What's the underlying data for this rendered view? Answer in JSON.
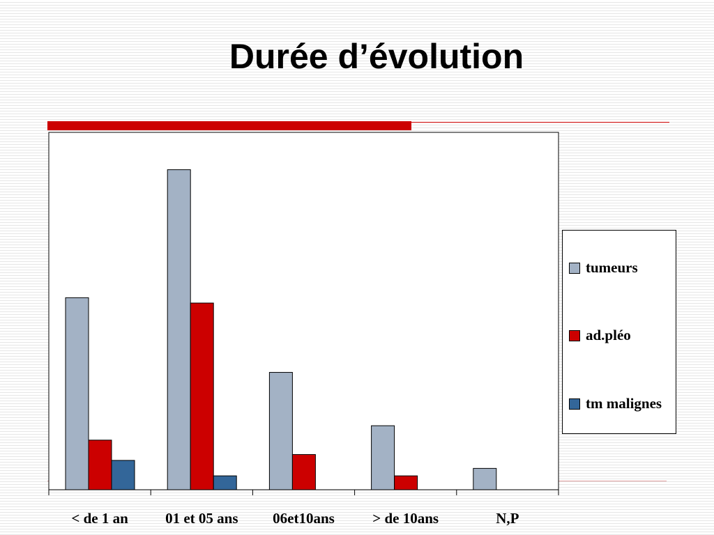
{
  "slide": {
    "title": "Durée d’évolution"
  },
  "colors": {
    "accent": "#cc0000",
    "tumeurs": "#a3b2c5",
    "ad_pleo": "#cc0000",
    "tm_malignes": "#336699"
  },
  "chart_data": {
    "type": "bar",
    "title": "",
    "categories": [
      "< de 1 an",
      "01 et 05 ans",
      "06et10ans",
      "> de 10ans",
      "N,P"
    ],
    "series": [
      {
        "name": "tumeurs",
        "values": [
          36,
          60,
          22,
          12,
          4
        ]
      },
      {
        "name": "ad.pléo",
        "values": [
          9.3,
          35,
          6.6,
          2.6,
          0
        ]
      },
      {
        "name": "tm malignes",
        "values": [
          5.5,
          2.6,
          0,
          0,
          0
        ]
      }
    ],
    "ylim": [
      0,
      67
    ],
    "grid": false,
    "legend_position": "right"
  }
}
